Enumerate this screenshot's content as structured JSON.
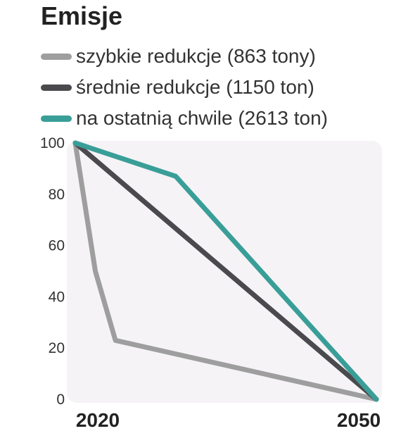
{
  "title": "Emisje",
  "chart_data": {
    "type": "line",
    "title": "Emisje",
    "x": [
      2020,
      2050
    ],
    "xticks": [
      "2020",
      "2050"
    ],
    "ylim": [
      0,
      100
    ],
    "yticks": [
      "0",
      "20",
      "40",
      "60",
      "80",
      "100"
    ],
    "series": [
      {
        "name": "szybkie redukcje (863 tony)",
        "color": "#9e9e9e",
        "points": [
          [
            2020,
            100
          ],
          [
            2022,
            50
          ],
          [
            2024,
            23
          ],
          [
            2050,
            0
          ]
        ]
      },
      {
        "name": "średnie redukcje (1150 ton)",
        "color": "#4a4a4e",
        "points": [
          [
            2020,
            100
          ],
          [
            2050,
            0
          ]
        ]
      },
      {
        "name": "na ostatnią chwile (2613 ton)",
        "color": "#3a9e98",
        "points": [
          [
            2020,
            100
          ],
          [
            2030,
            87
          ],
          [
            2050,
            0
          ]
        ]
      }
    ],
    "xlabel": "",
    "ylabel": "",
    "grid": false,
    "legend": "top-left"
  }
}
